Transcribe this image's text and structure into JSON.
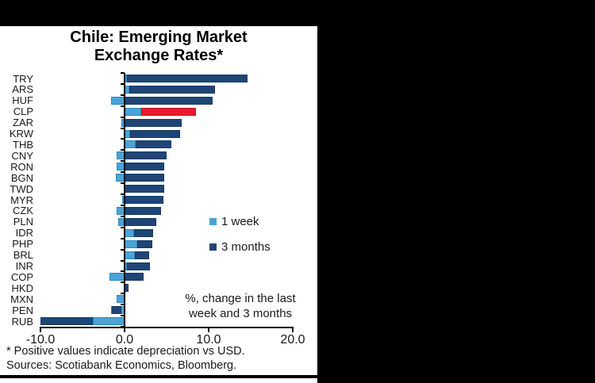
{
  "window": {
    "background": "#000000",
    "panel_background": "#ffffff"
  },
  "chart": {
    "title_line1": "Chile: Emerging Market",
    "title_line2": "Exchange Rates*",
    "note_line1": "%, change in the last",
    "note_line2": "week and 3 months",
    "footnote1": "* Positive values indicate depreciation vs USD.",
    "footnote2": "Sources: Scotiabank Economics, Bloomberg.",
    "colors": {
      "one_week": "#4BA3D6",
      "one_week_border": "#2F86BD",
      "three_months": "#1F4576",
      "three_months_border": "#173A63",
      "highlight": "#EC1B2C",
      "highlight_border": "#C5121F",
      "axis": "#000000",
      "text": "#1a1a1a"
    }
  },
  "chart_data": {
    "type": "bar",
    "orientation": "horizontal",
    "stacked": true,
    "title": "Chile: Emerging Market Exchange Rates*",
    "note": "%, change in the last week and 3 months",
    "xlim": [
      -10,
      20
    ],
    "x_ticks": [
      {
        "label": "-10.0",
        "value": -10
      },
      {
        "label": "0.0",
        "value": 0
      },
      {
        "label": "10.0",
        "value": 10
      },
      {
        "label": "20.0",
        "value": 20
      }
    ],
    "legend_position": "middle-right",
    "grid": false,
    "highlight_category": "CLP",
    "categories": [
      "TRY",
      "ARS",
      "HUF",
      "CLP",
      "ZAR",
      "KRW",
      "THB",
      "CNY",
      "RON",
      "BGN",
      "TWD",
      "MYR",
      "CZK",
      "PLN",
      "IDR",
      "PHP",
      "BRL",
      "INR",
      "COP",
      "HKD",
      "MXN",
      "PEN",
      "RUB"
    ],
    "series": [
      {
        "name": "1 week",
        "values": [
          0.3,
          0.55,
          -1.6,
          2.0,
          -0.4,
          0.65,
          1.3,
          -0.9,
          -0.9,
          -1.0,
          0.0,
          -0.3,
          -0.95,
          -0.8,
          1.1,
          1.5,
          1.25,
          0.3,
          -1.8,
          0.0,
          -0.9,
          -1.6,
          -3.75
        ]
      },
      {
        "name": "3 months",
        "values": [
          14.65,
          10.8,
          10.5,
          8.5,
          6.8,
          6.6,
          5.6,
          5.0,
          4.75,
          4.75,
          4.75,
          4.6,
          4.3,
          3.75,
          3.4,
          3.3,
          2.9,
          3.0,
          2.3,
          0.45,
          0.0,
          -1.5,
          -10.0
        ]
      }
    ],
    "rows": [
      {
        "code": "TRY",
        "segments": [
          {
            "series": "1 week",
            "from": 0,
            "to": 0.3
          },
          {
            "series": "3 months",
            "from": 0.3,
            "to": 14.65
          }
        ]
      },
      {
        "code": "ARS",
        "segments": [
          {
            "series": "1 week",
            "from": 0,
            "to": 0.55
          },
          {
            "series": "3 months",
            "from": 0.55,
            "to": 10.8
          }
        ]
      },
      {
        "code": "HUF",
        "segments": [
          {
            "series": "1 week",
            "from": -1.6,
            "to": 0
          },
          {
            "series": "3 months",
            "from": 0,
            "to": 10.5
          }
        ]
      },
      {
        "code": "CLP",
        "segments": [
          {
            "series": "1 week",
            "from": 0,
            "to": 2.0
          },
          {
            "series": "3 months",
            "from": 2.0,
            "to": 8.5,
            "highlight": true
          }
        ]
      },
      {
        "code": "ZAR",
        "segments": [
          {
            "series": "1 week",
            "from": -0.4,
            "to": 0
          },
          {
            "series": "3 months",
            "from": 0,
            "to": 6.8
          }
        ]
      },
      {
        "code": "KRW",
        "segments": [
          {
            "series": "1 week",
            "from": 0,
            "to": 0.65
          },
          {
            "series": "3 months",
            "from": 0.65,
            "to": 6.6
          }
        ]
      },
      {
        "code": "THB",
        "segments": [
          {
            "series": "1 week",
            "from": 0,
            "to": 1.3
          },
          {
            "series": "3 months",
            "from": 1.3,
            "to": 5.6
          }
        ]
      },
      {
        "code": "CNY",
        "segments": [
          {
            "series": "1 week",
            "from": -0.9,
            "to": 0
          },
          {
            "series": "3 months",
            "from": 0,
            "to": 5.0
          }
        ]
      },
      {
        "code": "RON",
        "segments": [
          {
            "series": "1 week",
            "from": -0.9,
            "to": 0
          },
          {
            "series": "3 months",
            "from": 0,
            "to": 4.75
          }
        ]
      },
      {
        "code": "BGN",
        "segments": [
          {
            "series": "1 week",
            "from": -1.0,
            "to": 0
          },
          {
            "series": "3 months",
            "from": 0,
            "to": 4.75
          }
        ]
      },
      {
        "code": "TWD",
        "segments": [
          {
            "series": "3 months",
            "from": 0,
            "to": 4.75
          }
        ]
      },
      {
        "code": "MYR",
        "segments": [
          {
            "series": "1 week",
            "from": -0.3,
            "to": 0
          },
          {
            "series": "3 months",
            "from": 0,
            "to": 4.6
          }
        ]
      },
      {
        "code": "CZK",
        "segments": [
          {
            "series": "1 week",
            "from": -0.95,
            "to": 0
          },
          {
            "series": "3 months",
            "from": 0,
            "to": 4.3
          }
        ]
      },
      {
        "code": "PLN",
        "segments": [
          {
            "series": "1 week",
            "from": -0.8,
            "to": 0
          },
          {
            "series": "3 months",
            "from": 0,
            "to": 3.75
          }
        ]
      },
      {
        "code": "IDR",
        "segments": [
          {
            "series": "1 week",
            "from": 0,
            "to": 1.1
          },
          {
            "series": "3 months",
            "from": 1.1,
            "to": 3.4
          }
        ]
      },
      {
        "code": "PHP",
        "segments": [
          {
            "series": "1 week",
            "from": 0,
            "to": 1.5
          },
          {
            "series": "3 months",
            "from": 1.5,
            "to": 3.3
          }
        ]
      },
      {
        "code": "BRL",
        "segments": [
          {
            "series": "1 week",
            "from": 0,
            "to": 1.25
          },
          {
            "series": "3 months",
            "from": 1.25,
            "to": 2.9
          }
        ]
      },
      {
        "code": "INR",
        "segments": [
          {
            "series": "1 week",
            "from": 0,
            "to": 0.3
          },
          {
            "series": "3 months",
            "from": 0.3,
            "to": 3.0
          }
        ]
      },
      {
        "code": "COP",
        "segments": [
          {
            "series": "1 week",
            "from": -1.8,
            "to": 0
          },
          {
            "series": "3 months",
            "from": 0,
            "to": 2.3
          }
        ]
      },
      {
        "code": "HKD",
        "segments": [
          {
            "series": "3 months",
            "from": 0,
            "to": 0.45
          }
        ]
      },
      {
        "code": "MXN",
        "segments": [
          {
            "series": "1 week",
            "from": -0.9,
            "to": 0
          }
        ]
      },
      {
        "code": "PEN",
        "segments": [
          {
            "series": "1 week",
            "from": -1.6,
            "to": 0
          },
          {
            "series": "3 months",
            "from": -1.5,
            "to": -0.35
          }
        ]
      },
      {
        "code": "RUB",
        "segments": [
          {
            "series": "1 week",
            "from": -3.75,
            "to": 0
          },
          {
            "series": "3 months",
            "from": -10.0,
            "to": -3.75
          }
        ]
      }
    ]
  }
}
